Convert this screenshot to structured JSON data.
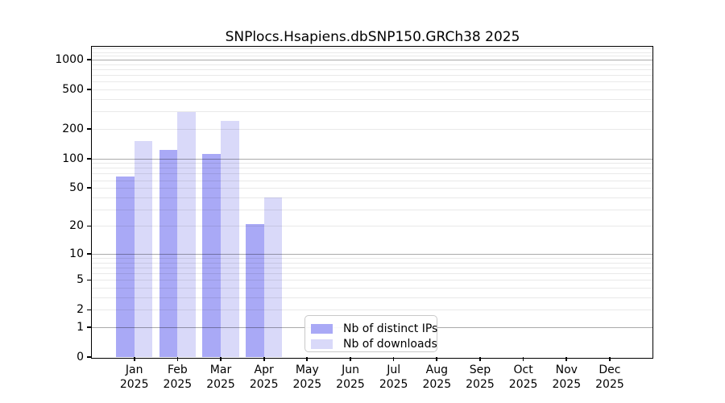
{
  "title": "SNPlocs.Hsapiens.dbSNP150.GRCh38 2025",
  "legend": {
    "items": [
      {
        "label": "Nb of distinct IPs",
        "color": "#a9a9f6"
      },
      {
        "label": "Nb of downloads",
        "color": "#d9d9f9"
      }
    ]
  },
  "chart_data": {
    "type": "bar",
    "title": "SNPlocs.Hsapiens.dbSNP150.GRCh38 2025",
    "categories": [
      "Jan",
      "Feb",
      "Mar",
      "Apr",
      "May",
      "Jun",
      "Jul",
      "Aug",
      "Sep",
      "Oct",
      "Nov",
      "Dec"
    ],
    "category_year": "2025",
    "series": [
      {
        "name": "Nb of distinct IPs",
        "color": "#a9a9f6",
        "values": [
          65,
          123,
          112,
          21,
          null,
          null,
          null,
          null,
          null,
          null,
          null,
          null
        ]
      },
      {
        "name": "Nb of downloads",
        "color": "#d9d9f9",
        "values": [
          152,
          298,
          240,
          40,
          null,
          null,
          null,
          null,
          null,
          null,
          null,
          null
        ]
      }
    ],
    "xlabel": "",
    "ylabel": "",
    "yscale": "log10(1+x)",
    "yticks": [
      0,
      1,
      2,
      5,
      10,
      20,
      50,
      100,
      200,
      500,
      1000
    ],
    "ylim": [
      0,
      1360
    ],
    "grid": {
      "orientation": "horizontal",
      "major_at": [
        1,
        10,
        100,
        1000
      ],
      "minor": "log decades 2-9 per decade"
    },
    "legend_position": "lower center-right inside plot"
  }
}
